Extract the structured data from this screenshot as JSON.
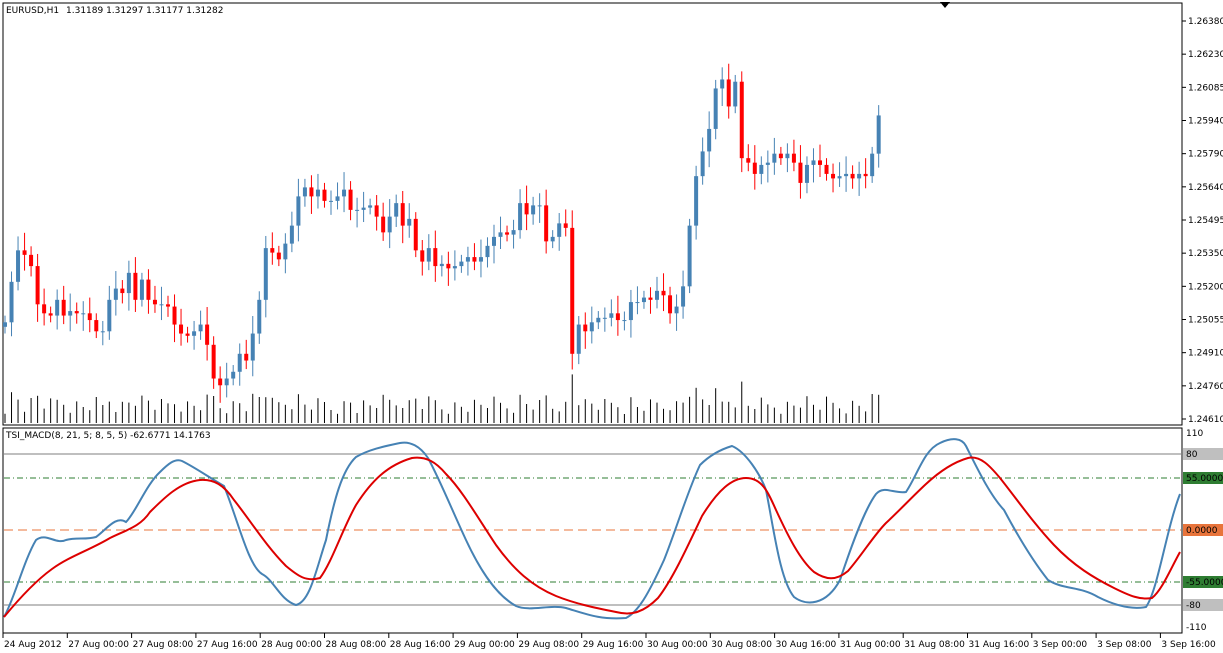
{
  "main_header": {
    "symbol": "EURUSD,H1",
    "ohlc": "1.31189 1.31297 1.31177 1.31282"
  },
  "indicator_header": {
    "label": "TSI_MACD(8, 21, 5; 8, 5, 5) -62.6771 14.1763"
  },
  "price_axis": [
    "1.26380",
    "1.26230",
    "1.26085",
    "1.25940",
    "1.25790",
    "1.25640",
    "1.25495",
    "1.25350",
    "1.25200",
    "1.25055",
    "1.24910",
    "1.24760",
    "1.24610"
  ],
  "indicator_axis": {
    "top": "110",
    "bottom": "-110",
    "level_upper_label": "80",
    "level_lower_label": "-80",
    "level_55_label": "55.0000",
    "level_0_label": "0.0000",
    "level_m55_label": "-55.0000"
  },
  "time_axis": [
    "24 Aug 2012",
    "27 Aug 00:00",
    "27 Aug 08:00",
    "27 Aug 16:00",
    "28 Aug 00:00",
    "28 Aug 08:00",
    "28 Aug 16:00",
    "29 Aug 00:00",
    "29 Aug 08:00",
    "29 Aug 16:00",
    "30 Aug 00:00",
    "30 Aug 08:00",
    "30 Aug 16:00",
    "31 Aug 00:00",
    "31 Aug 08:00",
    "31 Aug 16:00",
    "3 Sep 00:00",
    "3 Sep 08:00",
    "3 Sep 16:00"
  ],
  "colors": {
    "bull": "#4682B4",
    "bear": "#FF0000",
    "tsi_line": "#4682B4",
    "signal_line": "#DD0000",
    "level_80": "#BFBFBF",
    "level_55": "#2E7D32",
    "level_0": "#E8743B"
  },
  "chart_data": {
    "type": "candlestick",
    "price_range": [
      1.2461,
      1.2638
    ],
    "closes": [
      1.2504,
      1.2522,
      1.2536,
      1.2534,
      1.2529,
      1.2512,
      1.2508,
      1.2507,
      1.2514,
      1.2507,
      1.2509,
      1.2508,
      1.2508,
      1.2505,
      1.25,
      1.25,
      1.2514,
      1.2519,
      1.2517,
      1.2526,
      1.2514,
      1.2523,
      1.2514,
      1.2512,
      1.2512,
      1.2511,
      1.2503,
      1.2499,
      1.2498,
      1.25,
      1.2503,
      1.2494,
      1.2479,
      1.2476,
      1.2479,
      1.2482,
      1.249,
      1.2487,
      1.2499,
      1.2514,
      1.2537,
      1.2535,
      1.2532,
      1.2539,
      1.2547,
      1.256,
      1.2564,
      1.256,
      1.2563,
      1.2558,
      1.2558,
      1.256,
      1.2563,
      1.2554,
      1.2554,
      1.2555,
      1.2556,
      1.2551,
      1.2544,
      1.2551,
      1.2557,
      1.2547,
      1.255,
      1.2536,
      1.2531,
      1.2537,
      1.2529,
      1.253,
      1.2528,
      1.2529,
      1.2531,
      1.2533,
      1.2531,
      1.2533,
      1.2538,
      1.2542,
      1.2544,
      1.2543,
      1.2545,
      1.2557,
      1.2552,
      1.2556,
      1.2556,
      1.254,
      1.2542,
      1.2548,
      1.2546,
      1.249,
      1.2503,
      1.25,
      1.2504,
      1.2506,
      1.2506,
      1.2508,
      1.2505,
      1.2505,
      1.2513,
      1.2513,
      1.2515,
      1.2514,
      1.2518,
      1.2516,
      1.2508,
      1.2511,
      1.252,
      1.2547,
      1.2569,
      1.258,
      1.259,
      1.2608,
      1.2612,
      1.26,
      1.2611,
      1.2577,
      1.2575,
      1.257,
      1.2574,
      1.2575,
      1.2579,
      1.2577,
      1.2579,
      1.2575,
      1.2566,
      1.2574,
      1.2576,
      1.2574,
      1.257,
      1.2568,
      1.2569,
      1.257,
      1.2568,
      1.257,
      1.2569,
      1.2579,
      1.2596
    ],
    "tsi_series": {
      "name": "TSI",
      "last_value": -62.6771
    },
    "signal_series": {
      "name": "Signal",
      "last_value": 14.1763
    },
    "indicator_range": [
      -110,
      110
    ],
    "levels": [
      80,
      55,
      0,
      -55,
      -80
    ]
  }
}
